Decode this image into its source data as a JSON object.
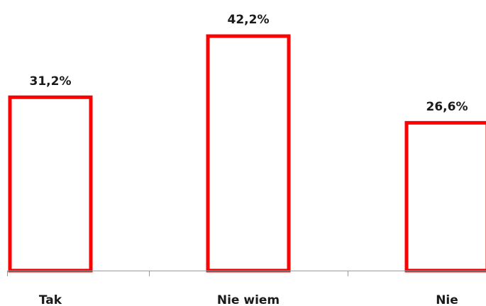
{
  "chart_data": {
    "type": "bar",
    "categories": [
      "Tak",
      "Nie wiem",
      "Nie"
    ],
    "values": [
      31.2,
      42.2,
      26.6
    ],
    "data_labels": [
      "31,2%",
      "42,2%",
      "26,6%"
    ],
    "title": "",
    "xlabel": "",
    "ylabel": "",
    "ylim": [
      0,
      42.2
    ],
    "grid": false,
    "legend": "none",
    "bar_fill_color": "#ffffff",
    "bar_border_color": "#ff0000",
    "axis_color": "#9a9a9a"
  }
}
